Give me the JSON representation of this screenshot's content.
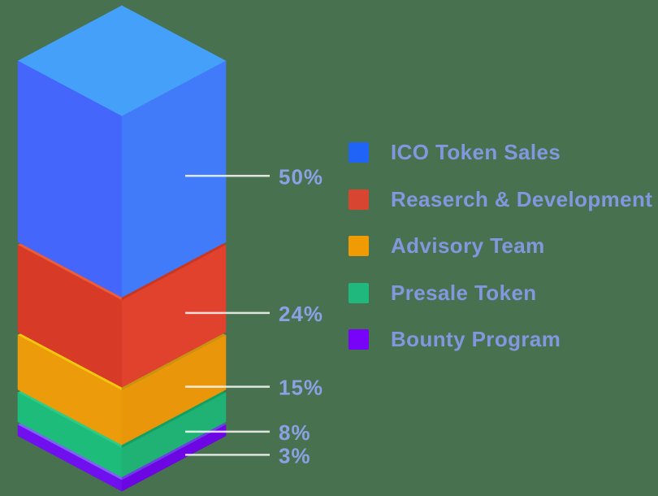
{
  "background_color": "#48714f",
  "chart_data": {
    "type": "bar",
    "variant": "isometric-3d-stacked-column",
    "unit": "%",
    "categories": [
      "ICO Token Sales",
      "Reaserch & Development",
      "Advisory Team",
      "Presale Token",
      "Bounty Program"
    ],
    "values": [
      50,
      24,
      15,
      8,
      3
    ],
    "legend_position": "right",
    "grid": "off",
    "callout_line_color": "#ffffff",
    "percent_label_color": "#8ba1e3",
    "legend_text_color": "#8297de",
    "segments": [
      {
        "label": "ICO Token Sales",
        "value": 50,
        "pct_label": "50%",
        "colors": {
          "top_left": "#45a0f9",
          "top_right": "#45a0f9",
          "face_left": "#4566fa",
          "face_right": "#417bf9",
          "legend": "#1f64f7"
        }
      },
      {
        "label": "Reaserch & Development",
        "value": 24,
        "pct_label": "24%",
        "colors": {
          "top_left": "#ee5c36",
          "top_right": "#c8371f",
          "face_left": "#d73a27",
          "face_right": "#e0422e",
          "legend": "#d84632"
        }
      },
      {
        "label": "Advisory Team",
        "value": 15,
        "pct_label": "15%",
        "colors": {
          "top_left": "#f2c70e",
          "top_right": "#c8930f",
          "face_left": "#ec9c0b",
          "face_right": "#e9960a",
          "legend": "#f09b04"
        }
      },
      {
        "label": "Presale Token",
        "value": 8,
        "pct_label": "8%",
        "colors": {
          "top_left": "#2ccc87",
          "top_right": "#119f63",
          "face_left": "#1dbc7a",
          "face_right": "#1fb274",
          "legend": "#20b87c"
        }
      },
      {
        "label": "Bounty Program",
        "value": 3,
        "pct_label": "3%",
        "colors": {
          "top_left": "#7d64f2",
          "top_right": "#6c3fe4",
          "face_left": "#7010ef",
          "face_right": "#6c06e2",
          "legend": "#7703f8"
        }
      }
    ]
  }
}
